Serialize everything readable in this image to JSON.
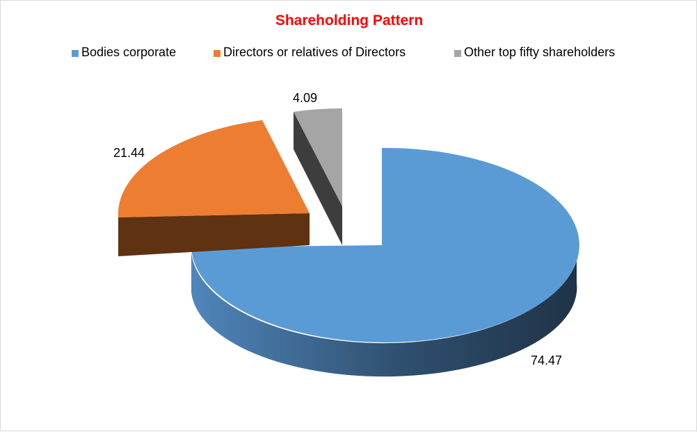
{
  "chart_data": {
    "type": "pie",
    "title": "Shareholding Pattern",
    "categories": [
      "Bodies corporate",
      "Directors or relatives of Directors",
      "Other top fifty shareholders"
    ],
    "values": [
      74.47,
      21.44,
      4.09
    ],
    "colors": [
      "#5b9bd5",
      "#ed7d31",
      "#a5a5a5"
    ],
    "legend_position": "top",
    "exploded": true,
    "three_d": true
  }
}
